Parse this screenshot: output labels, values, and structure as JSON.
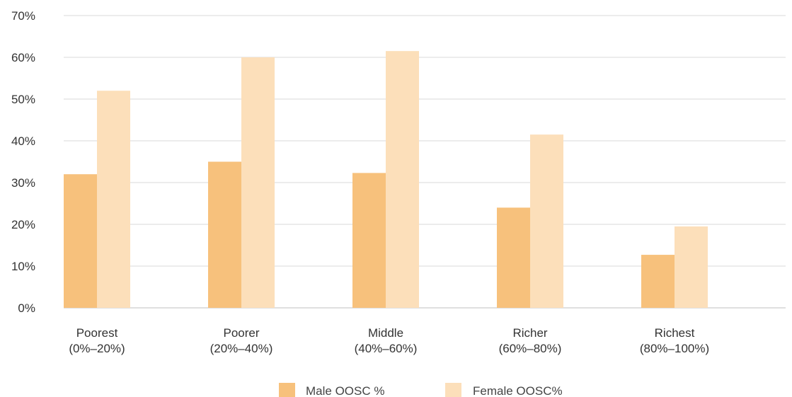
{
  "chart_data": {
    "type": "bar",
    "categories": [
      [
        "Poorest",
        "(0%–20%)"
      ],
      [
        "Poorer",
        "(20%–40%)"
      ],
      [
        "Middle",
        "(40%–60%)"
      ],
      [
        "Richer",
        "(60%–80%)"
      ],
      [
        "Richest",
        "(80%–100%)"
      ]
    ],
    "series": [
      {
        "name": "Male OOSC %",
        "values": [
          32,
          35,
          32.3,
          24,
          12.7
        ],
        "color": "#f7c17c"
      },
      {
        "name": "Female OOSC%",
        "values": [
          52,
          60,
          61.5,
          41.5,
          19.5
        ],
        "color": "#fcdfba"
      }
    ],
    "y_ticks": [
      "0%",
      "10%",
      "20%",
      "30%",
      "40%",
      "50%",
      "60%",
      "70%"
    ],
    "ylim": [
      0,
      70
    ],
    "grid": true,
    "legend_position": "bottom-center",
    "gridline_color": "#d9d9d9"
  }
}
